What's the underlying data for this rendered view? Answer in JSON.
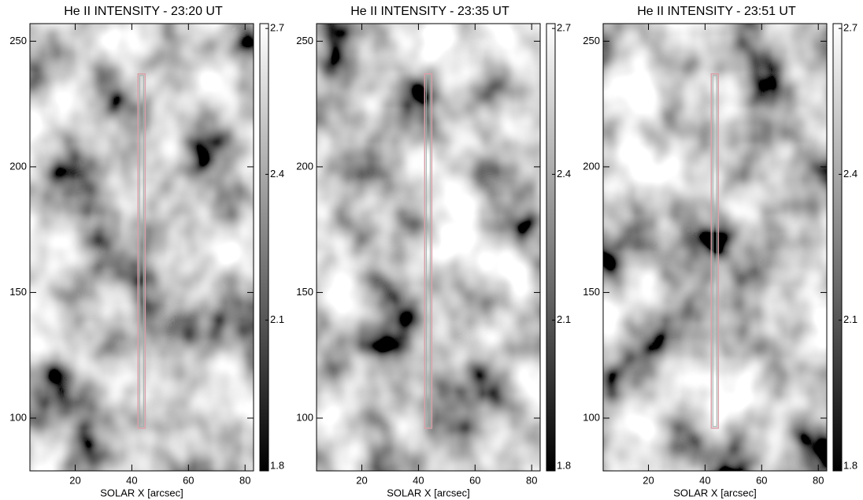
{
  "chart_data": [
    {
      "type": "image",
      "title": "He II INTENSITY - 23:20 UT",
      "xlabel": "SOLAR X [arcsec]",
      "xlim": [
        4,
        83
      ],
      "xticks": [
        20,
        40,
        60,
        80
      ],
      "ylim": [
        79,
        257
      ],
      "yticks": [
        100,
        150,
        200,
        250
      ],
      "colorbar": {
        "lim": [
          1.79,
          2.71
        ],
        "ticks": [
          1.8,
          2.1,
          2.4,
          2.7
        ]
      },
      "slit": {
        "x": [
          42.2,
          44.7
        ],
        "y": [
          96,
          237
        ]
      }
    },
    {
      "type": "image",
      "title": "He II INTENSITY - 23:35 UT",
      "xlabel": "SOLAR X [arcsec]",
      "xlim": [
        4,
        83
      ],
      "xticks": [
        20,
        40,
        60,
        80
      ],
      "ylim": [
        79,
        257
      ],
      "yticks": [
        100,
        150,
        200,
        250
      ],
      "colorbar": {
        "lim": [
          1.79,
          2.71
        ],
        "ticks": [
          1.8,
          2.1,
          2.4,
          2.7
        ]
      },
      "slit": {
        "x": [
          42.2,
          44.7
        ],
        "y": [
          96,
          237
        ]
      }
    },
    {
      "type": "image",
      "title": "He II INTENSITY - 23:51 UT",
      "xlabel": "SOLAR X [arcsec]",
      "xlim": [
        4,
        83
      ],
      "xticks": [
        20,
        40,
        60,
        80
      ],
      "ylim": [
        79,
        257
      ],
      "yticks": [
        100,
        150,
        200,
        250
      ],
      "colorbar": {
        "lim": [
          1.79,
          2.71
        ],
        "ticks": [
          1.8,
          2.1,
          2.4,
          2.7
        ]
      },
      "slit": {
        "x": [
          42.2,
          44.7
        ],
        "y": [
          96,
          237
        ]
      }
    }
  ]
}
